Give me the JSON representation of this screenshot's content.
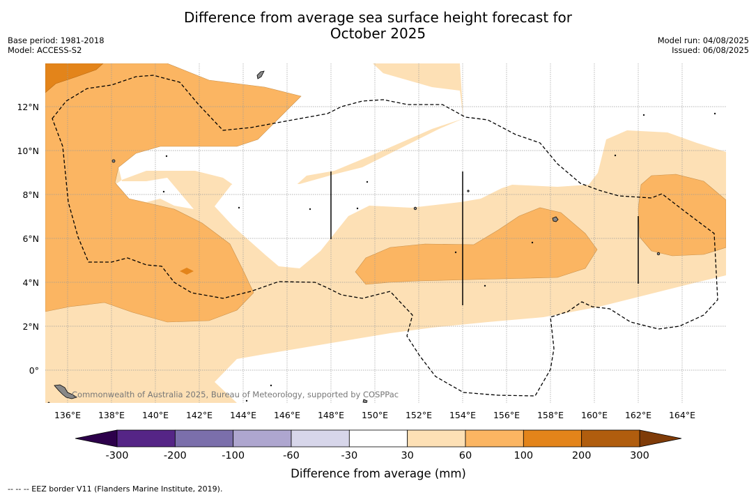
{
  "title_line1": "Difference from average sea surface height forecast for",
  "title_line2": "October 2025",
  "meta_left": [
    "Base period: 1981-2018",
    "Model: ACCESS-S2"
  ],
  "meta_right": [
    "Model run: 04/08/2025",
    "Issued: 06/08/2025"
  ],
  "attribution": "Commonwealth of Australia 2025, Bureau of Meteorology, supported by COSPPac",
  "footnote": "-- -- -- EEZ border V11 (Flanders Marine Institute, 2019).",
  "lon_labels": [
    "136°E",
    "138°E",
    "140°E",
    "142°E",
    "144°E",
    "146°E",
    "148°E",
    "150°E",
    "152°E",
    "154°E",
    "156°E",
    "158°E",
    "160°E",
    "162°E",
    "164°E"
  ],
  "lat_labels": [
    "12°N",
    "10°N",
    "8°N",
    "6°N",
    "4°N",
    "2°N",
    "0°"
  ],
  "colorbar": {
    "title": "Difference from average (mm)",
    "ticks": [
      "-300",
      "-200",
      "-100",
      "-60",
      "-30",
      "30",
      "60",
      "100",
      "200",
      "300"
    ],
    "colors": [
      "#552586",
      "#7b6fab",
      "#aea6cf",
      "#d7d6ea",
      "#ffffff",
      "#fde0b5",
      "#fbb562",
      "#e3841a",
      "#b05d0e"
    ],
    "under_color": "#2d004b",
    "over_color": "#7f3b08"
  },
  "legend_colors": {
    "band_30_60": "#fde0b5",
    "band_60_100": "#fbb562",
    "band_100_200": "#e3841a"
  }
}
